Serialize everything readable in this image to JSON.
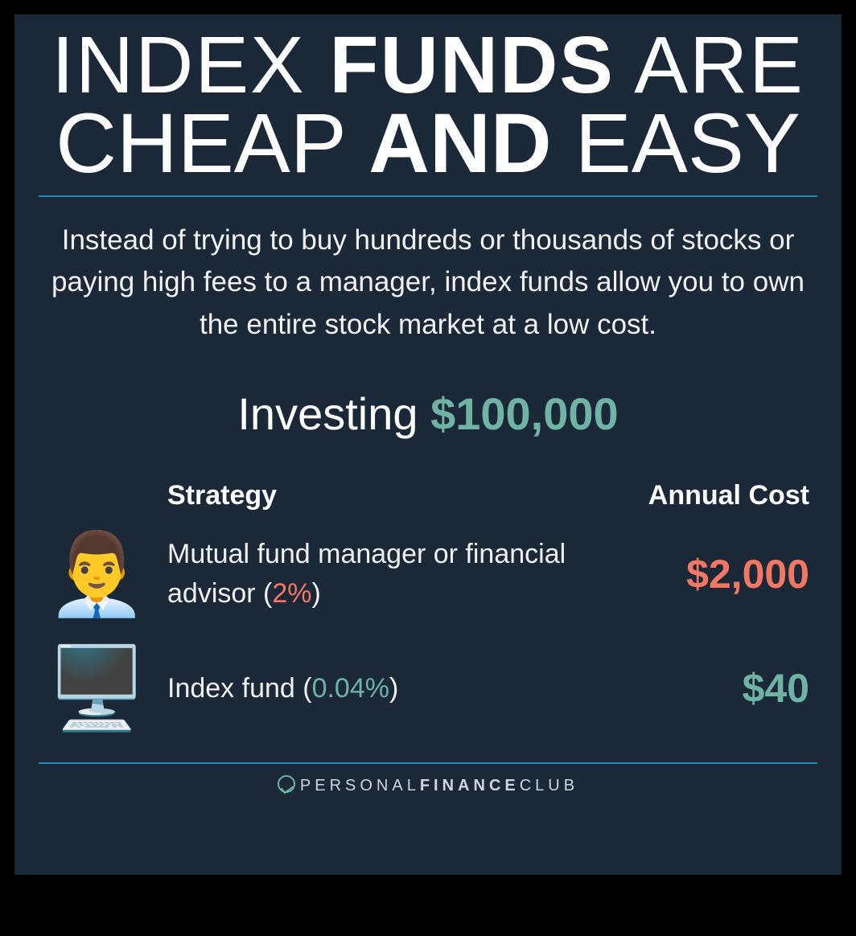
{
  "colors": {
    "page_bg": "#000000",
    "card_bg": "#1b2838",
    "text": "#ffffff",
    "subtitle_text": "#f1f1f1",
    "accent_green": "#6fb3a4",
    "accent_red": "#f37863",
    "rule": "#1f8fb5",
    "footer_text": "#d0d5da"
  },
  "typography": {
    "title_fontsize": 100,
    "title_line2_fontsize": 105,
    "subtitle_fontsize": 35,
    "investing_fontsize": 56,
    "header_fontsize": 34,
    "strategy_fontsize": 34,
    "cost_fontsize": 50,
    "footer_fontsize": 20,
    "icon_fontsize": 100
  },
  "title": {
    "line1": {
      "w1": "INDEX",
      "w2": "FUNDS",
      "w3": "ARE"
    },
    "line2": {
      "w1": "CHEAP",
      "w2": "AND",
      "w3": "EASY"
    }
  },
  "subtitle": "Instead of trying to buy hundreds or thousands of stocks or paying high fees to a manager, index funds allow you to own the entire stock market at a low cost.",
  "investing": {
    "label": "Investing ",
    "amount": "$100,000"
  },
  "table": {
    "headers": {
      "strategy": "Strategy",
      "cost": "Annual Cost"
    },
    "rows": [
      {
        "icon": "👨‍💼",
        "icon_name": "advisor-icon",
        "strategy_prefix": "Mutual fund manager or financial advisor (",
        "strategy_pct": "2%",
        "strategy_suffix": ")",
        "pct_color": "#f37863",
        "cost": "$2,000",
        "cost_color": "#f37863"
      },
      {
        "icon": "🖥️",
        "icon_name": "computer-icon",
        "strategy_prefix": "Index fund (",
        "strategy_pct": "0.04%",
        "strategy_suffix": ")",
        "pct_color": "#6fb3a4",
        "cost": "$40",
        "cost_color": "#6fb3a4"
      }
    ]
  },
  "footer": {
    "part1": "PERSONAL",
    "part2": "FINANCE",
    "part3": "CLUB"
  }
}
